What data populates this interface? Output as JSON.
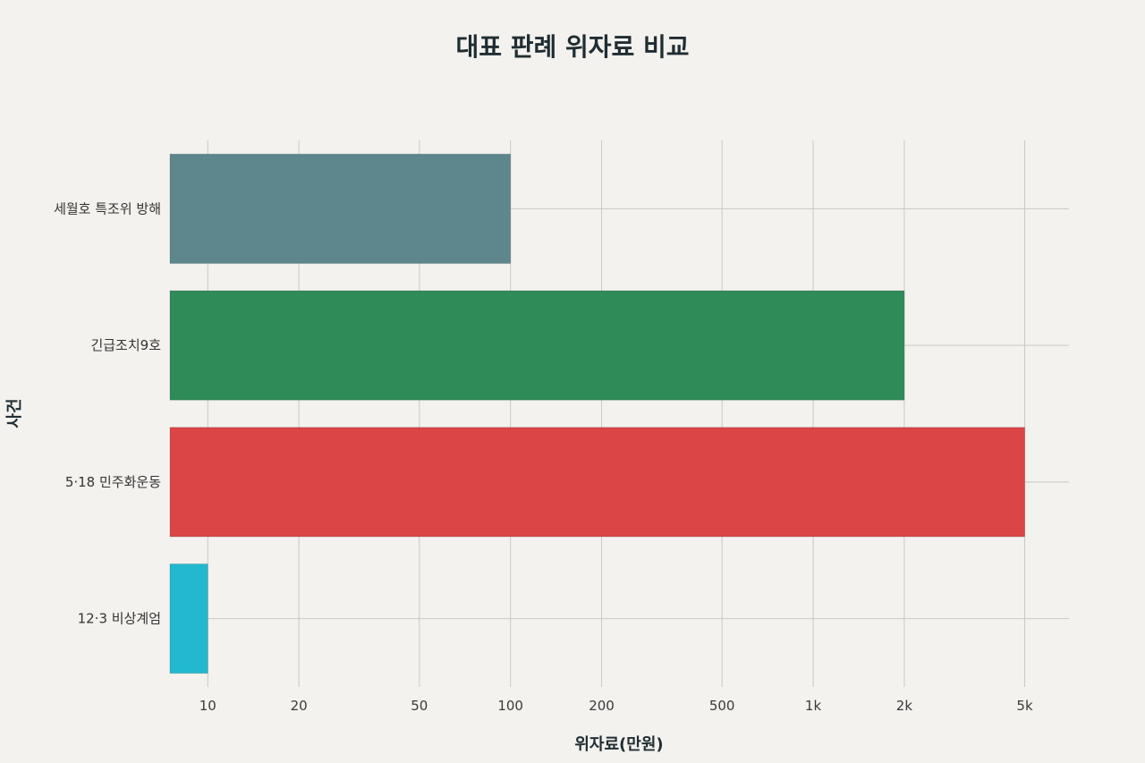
{
  "chart_data": {
    "type": "bar",
    "orientation": "horizontal",
    "title": "대표 판례 위자료 비교",
    "xlabel": "위자료(만원)",
    "ylabel": "사건",
    "x_scale": "log",
    "xlim": [
      7.5,
      7000
    ],
    "xticks": [
      10,
      20,
      50,
      100,
      200,
      500,
      1000,
      2000,
      5000
    ],
    "xtick_labels": [
      "10",
      "20",
      "50",
      "100",
      "200",
      "500",
      "1k",
      "2k",
      "5k"
    ],
    "grid": true,
    "categories": [
      "세월호 특조위 방해",
      "긴급조치9호",
      "5·18 민주화운동",
      "12·3 비상계엄"
    ],
    "values": [
      100,
      2000,
      5000,
      10
    ],
    "colors": [
      "#5d878d",
      "#2f8b58",
      "#db4546",
      "#22b9d0"
    ]
  }
}
